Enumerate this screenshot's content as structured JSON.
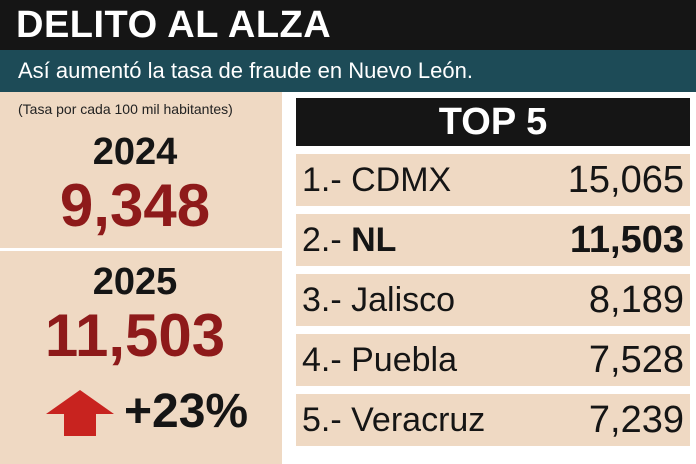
{
  "header": {
    "title": "DELITO AL ALZA"
  },
  "subheader": {
    "text": "Así aumentó la tasa de fraude en Nuevo León."
  },
  "summary": {
    "note": "(Tasa por cada 100 mil habitantes)",
    "year1": "2024",
    "value1": "9,348",
    "year2": "2025",
    "value2": "11,503",
    "change": "+23%",
    "arrow_icon": "up-arrow-icon",
    "value_color": "#8e1a1a",
    "arrow_color": "#c8231f"
  },
  "ranking": {
    "title": "TOP 5",
    "rows": [
      {
        "rank": "1.- ",
        "name": "CDMX",
        "value": "15,065"
      },
      {
        "rank": "2.- ",
        "name": "NL",
        "value": "11,503"
      },
      {
        "rank": "3.- ",
        "name": "Jalisco",
        "value": "8,189"
      },
      {
        "rank": "4.- ",
        "name": "Puebla",
        "value": "7,528"
      },
      {
        "rank": "5.- ",
        "name": "Veracruz",
        "value": "7,239"
      }
    ]
  }
}
